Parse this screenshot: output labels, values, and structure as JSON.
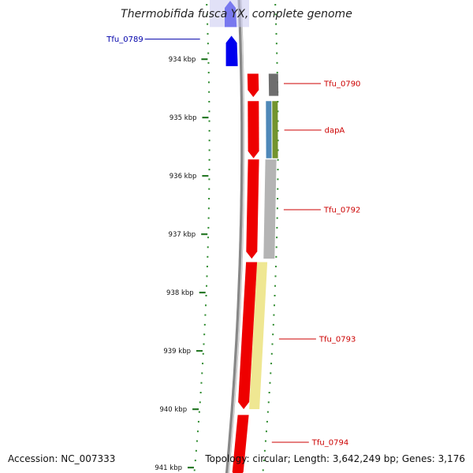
{
  "title": "Thermobifida fusca YX, complete genome",
  "footer": {
    "accession": "Accession: NC_007333",
    "summary": "Topology: circular; Length: 3,642,249 bp; Genes: 3,176"
  },
  "colors": {
    "backbone": "#888888",
    "tick": "#2a7a2a",
    "minor_tick": "#2e8b2e",
    "forward_gene": "#0000ee",
    "reverse_gene": "#ee0000",
    "blue_label": "#0000aa",
    "red_label": "#cc0000"
  },
  "scale": {
    "unit": "kbp",
    "ticks": [
      {
        "kbp": 934,
        "label": "934 kbp"
      },
      {
        "kbp": 935,
        "label": "935 kbp"
      },
      {
        "kbp": 936,
        "label": "936 kbp"
      },
      {
        "kbp": 937,
        "label": "937 kbp"
      },
      {
        "kbp": 938,
        "label": "938 kbp"
      },
      {
        "kbp": 939,
        "label": "939 kbp"
      },
      {
        "kbp": 940,
        "label": "940 kbp"
      },
      {
        "kbp": 941,
        "label": "941 kbp"
      }
    ]
  },
  "genes": [
    {
      "strand": "+",
      "start_kbp": 933.0,
      "end_kbp": 933.45,
      "color": "#1a1aee",
      "label": ""
    },
    {
      "strand": "+",
      "start_kbp": 933.6,
      "end_kbp": 934.12,
      "color": "#0000ee",
      "label": "Tfu_0789"
    },
    {
      "strand": "-",
      "start_kbp": 934.25,
      "end_kbp": 934.65,
      "color": "#ee0000",
      "label": "Tfu_0790"
    },
    {
      "strand": "-",
      "start_kbp": 934.72,
      "end_kbp": 935.7,
      "color": "#ee0000",
      "label": "dapA"
    },
    {
      "strand": "-",
      "start_kbp": 935.72,
      "end_kbp": 937.42,
      "color": "#ee0000",
      "label": "Tfu_0792"
    },
    {
      "strand": "-",
      "start_kbp": 937.48,
      "end_kbp": 940.0,
      "color": "#ee0000",
      "label": "Tfu_0793"
    },
    {
      "strand": "-",
      "start_kbp": 940.1,
      "end_kbp": 941.2,
      "color": "#ee0000",
      "label": "Tfu_0794"
    }
  ],
  "features": [
    {
      "start_kbp": 934.25,
      "end_kbp": 934.63,
      "color": "#666666"
    },
    {
      "start_kbp": 934.72,
      "end_kbp": 935.7,
      "color": "#4682b4"
    },
    {
      "start_kbp": 934.72,
      "end_kbp": 935.7,
      "color": "#6b8e23"
    },
    {
      "start_kbp": 935.72,
      "end_kbp": 937.42,
      "color": "#b0b0b0"
    },
    {
      "start_kbp": 937.48,
      "end_kbp": 940.0,
      "color": "#eee68c"
    }
  ]
}
